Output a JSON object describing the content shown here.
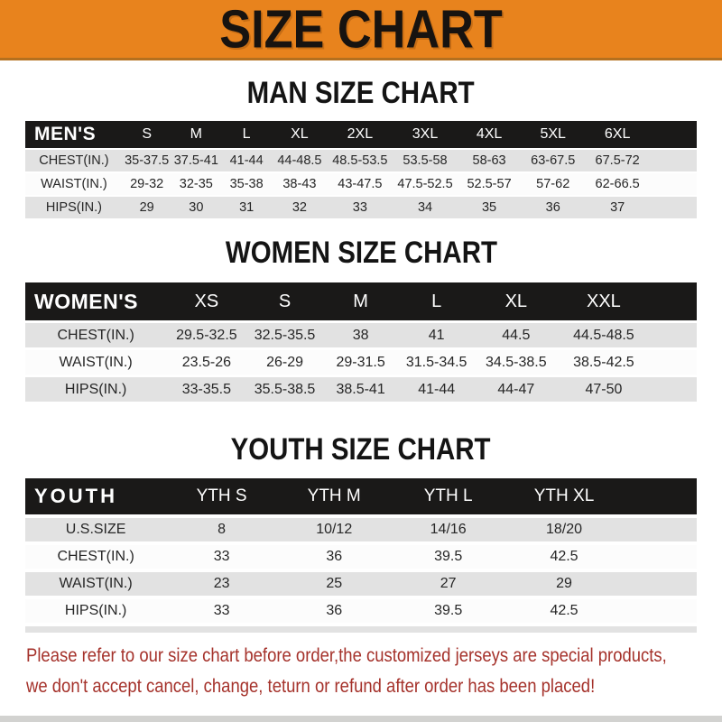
{
  "banner": {
    "title": "SIZE CHART"
  },
  "chart_data": [
    {
      "type": "table",
      "title": "MAN SIZE CHART",
      "header": [
        "MEN'S",
        "S",
        "M",
        "L",
        "XL",
        "2XL",
        "3XL",
        "4XL",
        "5XL",
        "6XL"
      ],
      "rows": [
        {
          "label": "CHEST(IN.)",
          "values": [
            "35-37.5",
            "37.5-41",
            "41-44",
            "44-48.5",
            "48.5-53.5",
            "53.5-58",
            "58-63",
            "63-67.5",
            "67.5-72"
          ]
        },
        {
          "label": "WAIST(IN.)",
          "values": [
            "29-32",
            "32-35",
            "35-38",
            "38-43",
            "43-47.5",
            "47.5-52.5",
            "52.5-57",
            "57-62",
            "62-66.5"
          ]
        },
        {
          "label": "HIPS(IN.)",
          "values": [
            "29",
            "30",
            "31",
            "32",
            "33",
            "34",
            "35",
            "36",
            "37"
          ]
        }
      ]
    },
    {
      "type": "table",
      "title": "WOMEN SIZE CHART",
      "header": [
        "WOMEN'S",
        "XS",
        "S",
        "M",
        "L",
        "XL",
        "XXL"
      ],
      "rows": [
        {
          "label": "CHEST(IN.)",
          "values": [
            "29.5-32.5",
            "32.5-35.5",
            "38",
            "41",
            "44.5",
            "44.5-48.5"
          ]
        },
        {
          "label": "WAIST(IN.)",
          "values": [
            "23.5-26",
            "26-29",
            "29-31.5",
            "31.5-34.5",
            "34.5-38.5",
            "38.5-42.5"
          ]
        },
        {
          "label": "HIPS(IN.)",
          "values": [
            "33-35.5",
            "35.5-38.5",
            "38.5-41",
            "41-44",
            "44-47",
            "47-50"
          ]
        }
      ]
    },
    {
      "type": "table",
      "title": "YOUTH SIZE CHART",
      "header": [
        "YOUTH",
        "YTH S",
        "YTH M",
        "YTH L",
        "YTH XL"
      ],
      "rows": [
        {
          "label": "U.S.SIZE",
          "values": [
            "8",
            "10/12",
            "14/16",
            "18/20"
          ]
        },
        {
          "label": "CHEST(IN.)",
          "values": [
            "33",
            "36",
            "39.5",
            "42.5"
          ]
        },
        {
          "label": "WAIST(IN.)",
          "values": [
            "23",
            "25",
            "27",
            "29"
          ]
        },
        {
          "label": "HIPS(IN.)",
          "values": [
            "33",
            "36",
            "39.5",
            "42.5"
          ]
        }
      ]
    }
  ],
  "footer": {
    "note_lines": [
      "Please refer to our size chart before order,the customized jerseys are special products,",
      "we don't accept cancel, change, teturn or refund after order has been placed!"
    ]
  },
  "colors": {
    "banner_background": "#e8831d",
    "table_bar_background": "#1a1918",
    "row_alt_background": "#e2e2e2",
    "note_red": "#a5322b"
  }
}
